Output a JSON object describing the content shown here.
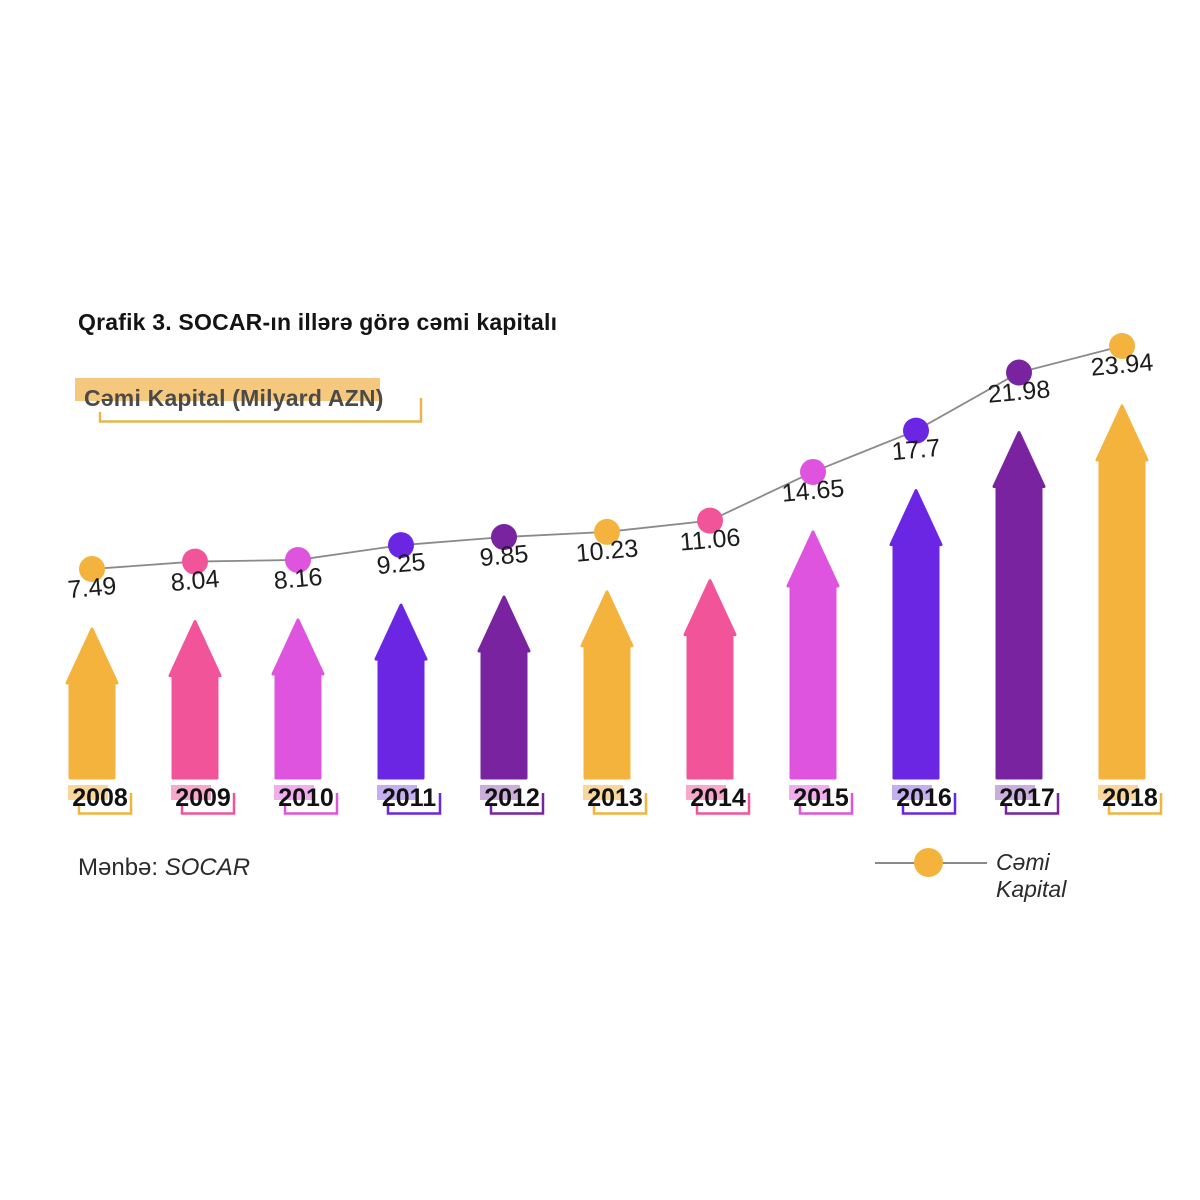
{
  "title": "Qrafik 3. SOCAR-ın illərə görə cəmi kapitalı",
  "subtitle": "Cəmi Kapital (Milyard AZN)",
  "source": {
    "label": "Mənbə:",
    "value": "SOCAR"
  },
  "legend": {
    "label": "Cəmi Kapital",
    "marker_color": "#F3B33C"
  },
  "colors": {
    "background": "#FFFFFF",
    "title_text": "#141414",
    "subtitle_text": "#4A4A4A",
    "subtitle_highlight": "#F6C87D",
    "subtitle_bracket": "#E9B54E",
    "trend_line": "#8A8A8A",
    "value_label": "#1C1C1C",
    "year_label": "#111111",
    "source_text": "#2B2B2B"
  },
  "chart_data": {
    "type": "bar",
    "title": "Qrafik 3. SOCAR-ın illərə görə cəmi kapitalı",
    "unit_label": "Cəmi Kapital (Milyard AZN)",
    "categories": [
      "2008",
      "2009",
      "2010",
      "2011",
      "2012",
      "2013",
      "2014",
      "2015",
      "2016",
      "2017",
      "2018"
    ],
    "series": [
      {
        "name": "Cəmi Kapital",
        "values": [
          7.49,
          8.04,
          8.16,
          9.25,
          9.85,
          10.23,
          11.06,
          14.65,
          17.7,
          21.98,
          23.94
        ]
      }
    ],
    "data_labels": [
      "7.49",
      "8.04",
      "8.16",
      "9.25",
      "9.85",
      "10.23",
      "11.06",
      "14.65",
      "17.7",
      "21.98",
      "23.94"
    ],
    "bar_palette": [
      "#F3B33C",
      "#F2549A",
      "#DE54DE",
      "#6B26E3",
      "#7A23A0"
    ],
    "tint_palette": [
      "#F9D79B",
      "#F8A8CA",
      "#F0AEEC",
      "#C4B0F0",
      "#CCAEDD"
    ],
    "marker_on_line": true,
    "overlay_line": true,
    "grid": false,
    "ylim": [
      0,
      25
    ],
    "xlabel": "",
    "ylabel": "Milyard AZN",
    "legend_position": "bottom-right"
  }
}
